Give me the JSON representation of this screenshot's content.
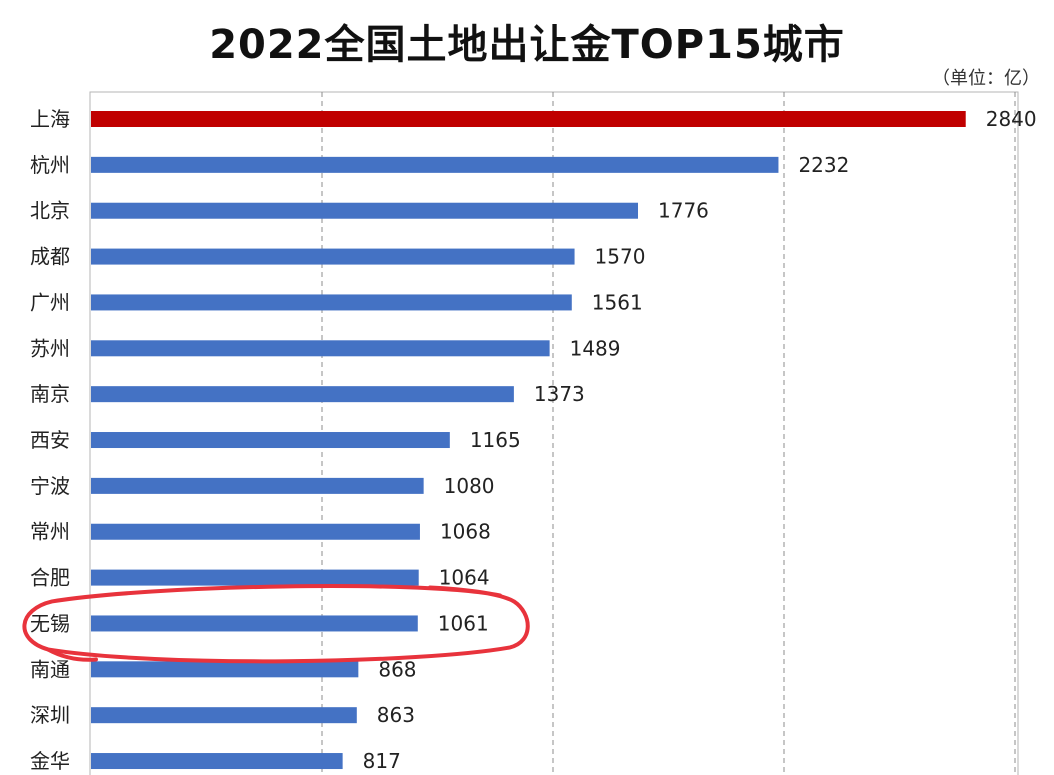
{
  "chart_data": {
    "type": "bar",
    "orientation": "horizontal",
    "title": "2022全国土地出让金TOP15城市",
    "unit_label": "（单位：亿）",
    "categories": [
      "上海",
      "杭州",
      "北京",
      "成都",
      "广州",
      "苏州",
      "南京",
      "西安",
      "宁波",
      "常州",
      "合肥",
      "无锡",
      "南通",
      "深圳",
      "金华"
    ],
    "values": [
      2840,
      2232,
      1776,
      1570,
      1561,
      1489,
      1373,
      1165,
      1080,
      1068,
      1064,
      1061,
      868,
      863,
      817
    ],
    "highlight_index": 0,
    "circled_index": 11,
    "xlim": [
      0,
      3000
    ],
    "gridlines": [
      750,
      1500,
      2250,
      3000
    ],
    "colors": {
      "bar": "#4472C4",
      "highlight": "#C00000",
      "annotation": "#E8333C",
      "grid": "#8c8c8c",
      "text": "#222222"
    }
  }
}
